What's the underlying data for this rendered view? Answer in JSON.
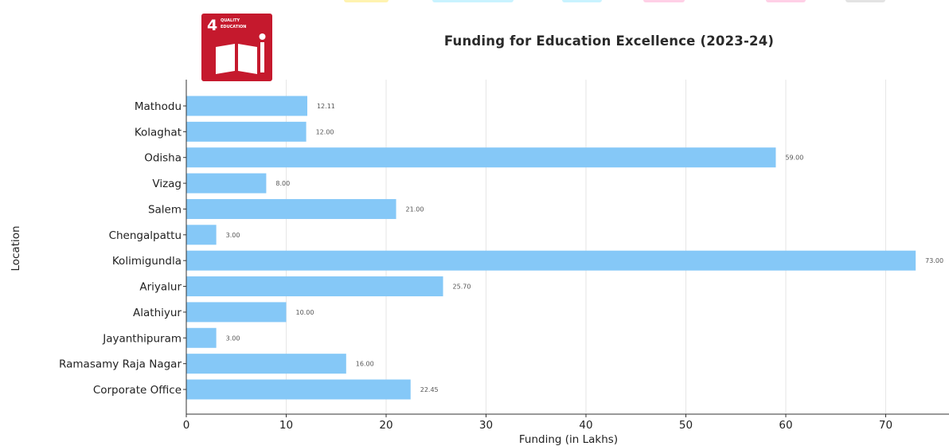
{
  "colors": {
    "bar": "#85c8f7",
    "badge": "#c5192d",
    "grid": "#e6e6e6",
    "axis": "#333333",
    "strips": [
      "#fff3b0",
      "#c9f3ff",
      "#c9f3ff",
      "#ffd0e6",
      "#ffd0e6",
      "#e3e3e3"
    ]
  },
  "badge": {
    "number": "4",
    "line1": "QUALITY",
    "line2": "EDUCATION",
    "icon": "open-book-icon"
  },
  "chart_data": {
    "type": "bar",
    "orientation": "horizontal",
    "title": "Funding for Education Excellence (2023-24)",
    "xlabel": "Funding (in Lakhs)",
    "ylabel": "Location",
    "xlim": [
      0,
      75
    ],
    "xticks": [
      0,
      10,
      20,
      30,
      40,
      50,
      60,
      70
    ],
    "grid": true,
    "categories": [
      "Mathodu",
      "Kolaghat",
      "Odisha",
      "Vizag",
      "Salem",
      "Chengalpattu",
      "Kolimigundla",
      "Ariyalur",
      "Alathiyur",
      "Jayanthipuram",
      "Ramasamy Raja Nagar",
      "Corporate Office"
    ],
    "values": [
      12.11,
      12.0,
      59.0,
      8.0,
      21.0,
      3.0,
      73.0,
      25.7,
      10.0,
      3.0,
      16.0,
      22.45
    ],
    "data_labels": [
      "12.11",
      "12.00",
      "59.00",
      "8.00",
      "21.00",
      "3.00",
      "73.00",
      "25.70",
      "10.00",
      "3.00",
      "16.00",
      "22.45"
    ]
  }
}
